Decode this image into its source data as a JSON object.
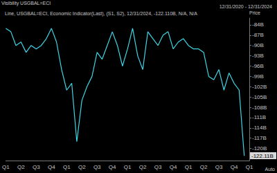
{
  "chart_data": {
    "type": "line",
    "title": "Line, USGBAL=ECI, Economic Indicator(Last), (S1, S2), 12/31/2024, -122.110B, N/A, N/A",
    "subtitle": "12/31/2020 - 12/31/2024",
    "y_label": "Price",
    "annotations": [
      {
        "text": "Visibility USGBAL=ECI"
      },
      {
        "text": "-122.11B",
        "y": -122.11
      },
      {
        "text": "Auto"
      }
    ],
    "categories": [
      "Q1",
      null,
      null,
      "Q2",
      null,
      null,
      "Q3",
      null,
      null,
      "Q4",
      null,
      null,
      "Q1",
      null,
      null,
      "Q2",
      null,
      null,
      "Q3",
      null,
      null,
      "Q4",
      null,
      null,
      "Q1",
      null,
      null,
      "Q2",
      null,
      null,
      "Q3",
      null,
      null,
      "Q4",
      null,
      null,
      "Q1",
      null,
      null,
      "Q2",
      null,
      null,
      "Q3",
      null,
      null,
      "Q4",
      null,
      null,
      "Q1"
    ],
    "values": [
      -85,
      -86,
      -90,
      -89,
      -92,
      -90,
      -91,
      -90,
      -88,
      -85,
      -89,
      -97,
      -103,
      -101,
      -118,
      -106,
      -102,
      -99,
      -92,
      -94,
      -90,
      -86,
      -90,
      -96,
      -91,
      -85,
      -93,
      -97,
      -86,
      -88,
      -90,
      -87,
      -86,
      -91,
      -89,
      -88,
      -90,
      -91,
      -91,
      -92,
      -99,
      -100,
      -97,
      -103,
      -98,
      -101,
      -103,
      -122.11,
      null
    ],
    "color": "#3ed6e8",
    "ylim": [
      -123.5,
      -82
    ],
    "yticks": [
      {
        "value": -84,
        "label": "-84B"
      },
      {
        "value": -87,
        "label": "-87B"
      },
      {
        "value": -90,
        "label": "-90B"
      },
      {
        "value": -93,
        "label": "-93B"
      },
      {
        "value": -96,
        "label": "-96B"
      },
      {
        "value": -99,
        "label": "-99B"
      },
      {
        "value": -102,
        "label": "-102B"
      },
      {
        "value": -105,
        "label": "-105B"
      },
      {
        "value": -108,
        "label": "-108B"
      },
      {
        "value": -111,
        "label": "-111B"
      },
      {
        "value": -114,
        "label": "-114B"
      },
      {
        "value": -117,
        "label": "-117B"
      },
      {
        "value": -120,
        "label": "-120B"
      }
    ],
    "grid": false
  }
}
